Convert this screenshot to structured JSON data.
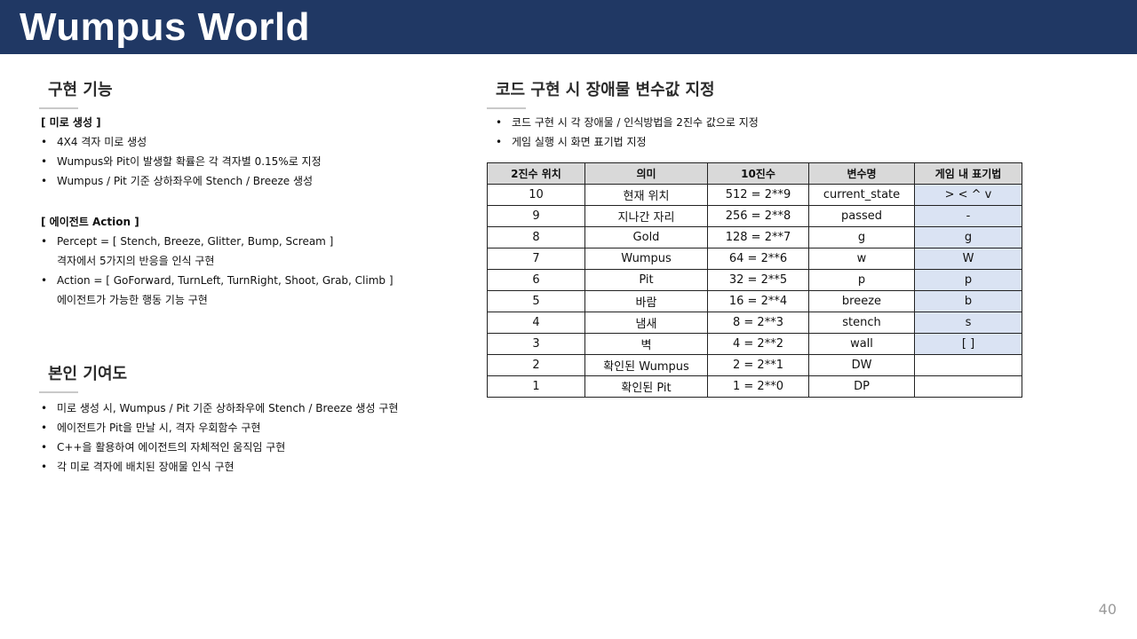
{
  "header": {
    "title": "Wumpus World"
  },
  "left": {
    "section1": {
      "title": "구현 기능",
      "groups": [
        {
          "heading": "[ 미로 생성 ]",
          "items": [
            {
              "text": "4X4 격자 미로 생성"
            },
            {
              "text": "Wumpus와  Pit이 발생할 확률은 각 격자별 0.15%로 지정"
            },
            {
              "text": "Wumpus  / Pit 기준 상하좌우에 Stench  / Breeze 생성"
            }
          ]
        },
        {
          "heading": "[ 에이전트 Action ]",
          "items": [
            {
              "text": "Percept  = [ Stench,  Breeze, Glitter, Bump, Scream ]",
              "cont": "격자에서 5가지의 반응을 인식 구현"
            },
            {
              "text": "Action  = [ GoForward, TurnLeft, TurnRight,  Shoot, Grab, Climb ]",
              "cont": "에이전트가 가능한 행동 기능 구현"
            }
          ]
        }
      ]
    },
    "section2": {
      "title": "본인 기여도",
      "items": [
        "미로 생성 시, Wumpus  / Pit 기준 상하좌우에 Stench  / Breeze 생성 구현",
        "에이전트가 Pit을 만날 시, 격자 우회함수 구현",
        "C++을 활용하여 에이전트의 자체적인 움직임 구현",
        "각 미로 격자에 배치된 장애물 인식 구현"
      ]
    }
  },
  "right": {
    "title": "코드 구현 시 장애물 변수값 지정",
    "items": [
      "코드 구현 시 각 장애물 / 인식방법을 2진수 값으로 지정",
      "게임 실행 시 화면 표기법 지정"
    ],
    "table": {
      "headers": [
        "2진수 위치",
        "의미",
        "10진수",
        "변수명",
        "게임 내 표기법"
      ],
      "rows": [
        [
          "10",
          "현재 위치",
          "512 = 2**9",
          "current_state",
          ">  <  ^  v"
        ],
        [
          "9",
          "지나간 자리",
          "256 = 2**8",
          "passed",
          "-"
        ],
        [
          "8",
          "Gold",
          "128 = 2**7",
          "g",
          "g"
        ],
        [
          "7",
          "Wumpus",
          "64 = 2**6",
          "w",
          "W"
        ],
        [
          "6",
          "Pit",
          "32 = 2**5",
          "p",
          "p"
        ],
        [
          "5",
          "바람",
          "16 = 2**4",
          "breeze",
          "b"
        ],
        [
          "4",
          "냄새",
          "8 = 2**3",
          "stench",
          "s"
        ],
        [
          "3",
          "벽",
          "4 = 2**2",
          "wall",
          "[  ]"
        ],
        [
          "2",
          "확인된 Wumpus",
          "2 = 2**1",
          "DW",
          ""
        ],
        [
          "1",
          "확인된 Pit",
          "1 = 2**0",
          "DP",
          ""
        ]
      ]
    }
  },
  "footer": {
    "page_number": "40"
  },
  "colors": {
    "header_bg": "#203864",
    "table_header_bg": "#d9d9d9",
    "table_highlight_bg": "#dae3f3"
  }
}
